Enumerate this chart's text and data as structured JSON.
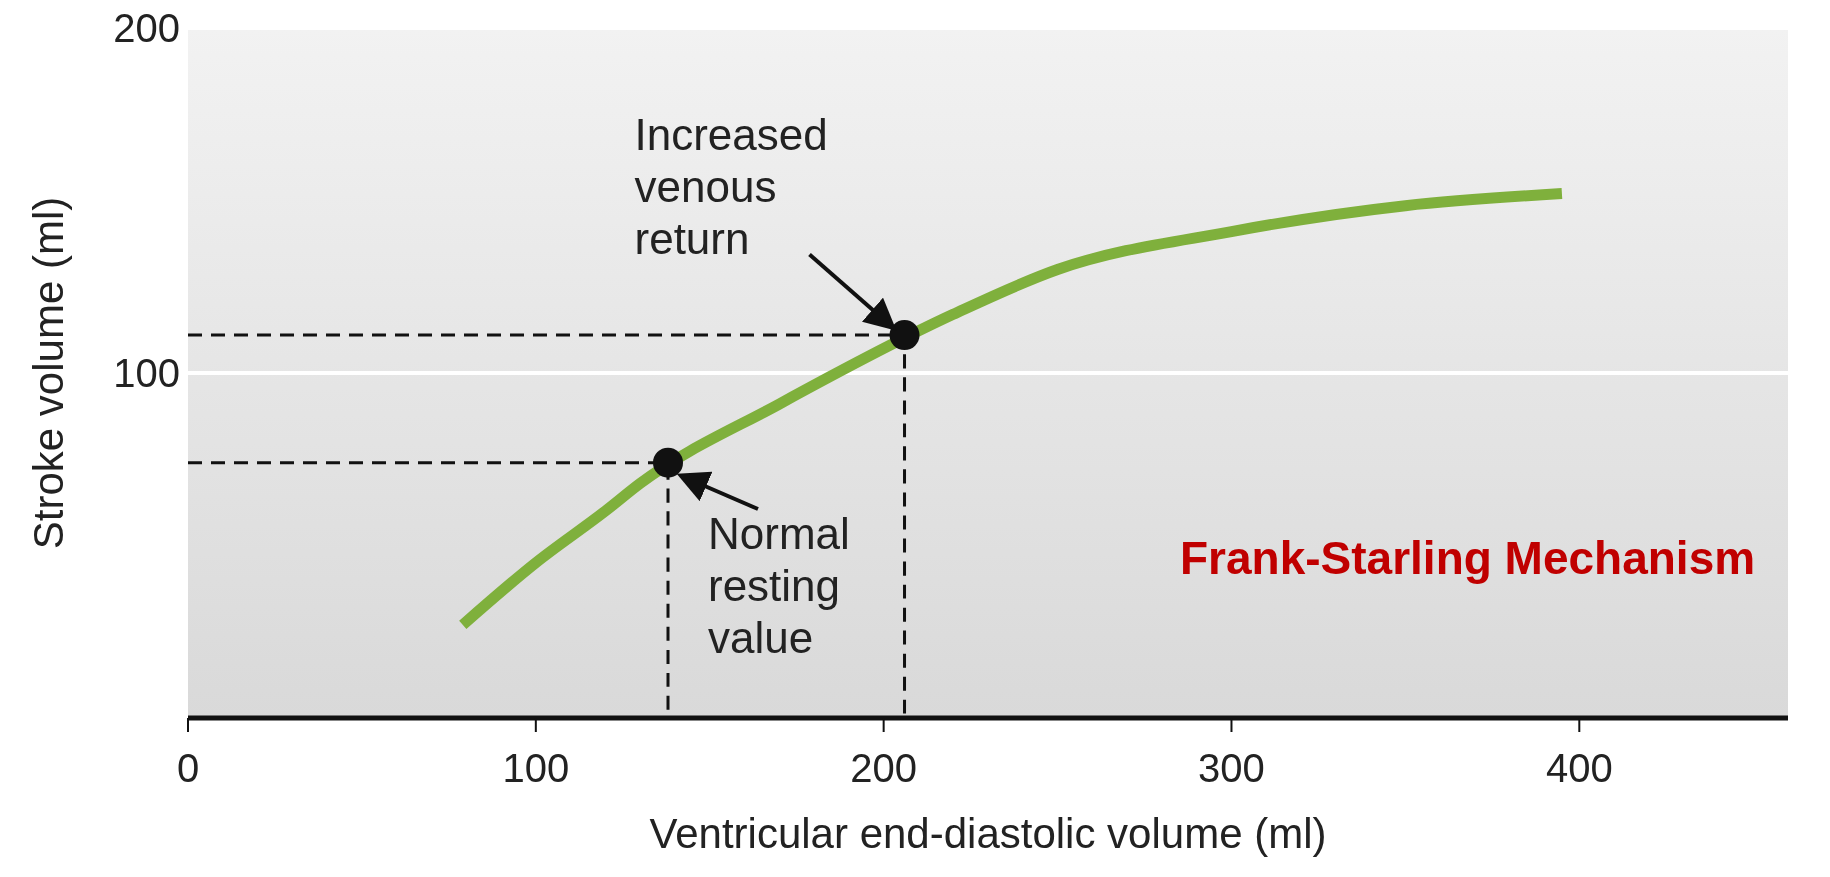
{
  "chart_data": {
    "type": "line",
    "title": "Frank-Starling Mechanism",
    "xlabel": "Ventricular end-diastolic volume (ml)",
    "ylabel": "Stroke volume (ml)",
    "xlim": [
      0,
      460
    ],
    "xticks": [
      0,
      100,
      200,
      300,
      400
    ],
    "ylim": [
      0,
      200
    ],
    "yticks": [
      100,
      200
    ],
    "grid": "y",
    "series": [
      {
        "color": "#7fb03c",
        "x": [
          79,
          100,
          120,
          130,
          170,
          220,
          250,
          300,
          350,
          395
        ],
        "values": [
          27,
          45,
          60,
          68,
          91,
          117,
          130,
          141,
          148.5,
          152
        ],
        "line_style": "solid",
        "marker": "none"
      },
      {
        "color": "#111111",
        "x": [
          0,
          138,
          138
        ],
        "values": [
          74,
          74,
          0
        ],
        "line_style": "dashed",
        "marker": "none"
      },
      {
        "color": "#111111",
        "x": [
          0,
          206,
          206
        ],
        "values": [
          111,
          111,
          0
        ],
        "line_style": "dashed",
        "marker": "none"
      },
      {
        "type": "scatter",
        "color": "#111111",
        "x": [
          138,
          206
        ],
        "values": [
          74,
          111
        ],
        "marker": "circle"
      }
    ],
    "annotations": [
      {
        "text": "Increased venous return",
        "x": 206,
        "y": 111
      },
      {
        "text": "Normal resting value",
        "x": 138,
        "y": 74
      }
    ]
  }
}
